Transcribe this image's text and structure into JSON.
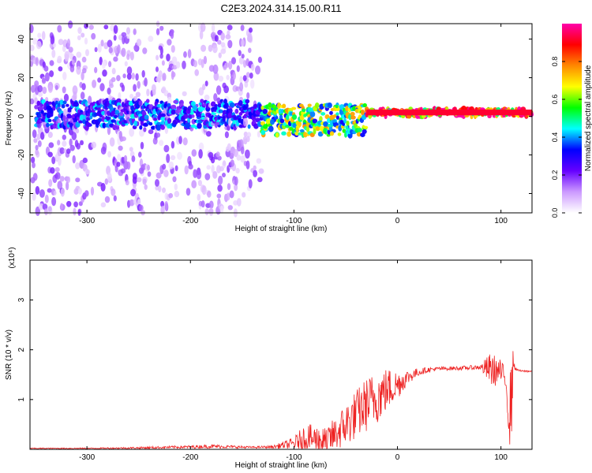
{
  "figure": {
    "title": "C2E3.2024.314.15.00.R11"
  },
  "chart_data": [
    {
      "type": "heatmap",
      "xlabel": "Height of straight line (km)",
      "ylabel": "Frequency (Hz)",
      "xlim": [
        -355,
        130
      ],
      "ylim": [
        -50,
        48
      ],
      "x_ticks": [
        -300,
        -200,
        -100,
        0,
        100
      ],
      "y_ticks": [
        -40,
        -20,
        0,
        20,
        40
      ],
      "grid": false,
      "colorbar": {
        "label": "Normalized spectral amplitude",
        "range": [
          0,
          1
        ],
        "ticks": [
          0.0,
          0.2,
          0.4,
          0.6,
          0.8
        ],
        "tick_labels": [
          "0.0",
          "0.2",
          "0.4",
          "0.6",
          "0.8"
        ],
        "colormap": [
          "#ffffff",
          "#cc99ff",
          "#6600ff",
          "#0000ff",
          "#00ffff",
          "#00ff00",
          "#ffff00",
          "#ff8800",
          "#ff0000",
          "#ff00aa"
        ]
      },
      "regions": [
        {
          "x_from": -355,
          "x_to": -130,
          "freq_spread": [
            -50,
            48
          ],
          "amplitude": 0.15,
          "pattern": "broadband vertical stripes"
        },
        {
          "x_from": -350,
          "x_to": -130,
          "freq_spread": [
            -6,
            8
          ],
          "amplitude": 0.35
        },
        {
          "x_from": -130,
          "x_to": -30,
          "freq_spread": [
            -10,
            6
          ],
          "amplitude": 0.6
        },
        {
          "x_from": -30,
          "x_to": 130,
          "freq_spread": [
            0,
            4
          ],
          "amplitude": 0.95,
          "center_freq": 2
        }
      ]
    },
    {
      "type": "line",
      "xlabel": "Height of straight line (km)",
      "ylabel": "SNR (10 * v/v)",
      "y_multiplier": "(x10⁴)",
      "xlim": [
        -355,
        130
      ],
      "ylim": [
        0,
        3.8
      ],
      "x_ticks": [
        -300,
        -200,
        -100,
        0,
        100
      ],
      "y_ticks": [
        1,
        2,
        3
      ],
      "color": "#ee2222",
      "series": [
        {
          "x": [
            -355,
            -300,
            -250,
            -200,
            -180,
            -160,
            -140,
            -120,
            -100,
            -90,
            -80,
            -70,
            -60,
            -50,
            -40,
            -30,
            -20,
            -10,
            0,
            10,
            20,
            30,
            40,
            60,
            80,
            90,
            100,
            105,
            108,
            110,
            112,
            115,
            120,
            130
          ],
          "y": [
            0.02,
            0.02,
            0.03,
            0.05,
            0.06,
            0.05,
            0.04,
            0.05,
            0.12,
            0.25,
            0.2,
            0.15,
            0.3,
            0.5,
            0.7,
            0.9,
            1.05,
            1.2,
            1.3,
            1.45,
            1.55,
            1.6,
            1.62,
            1.63,
            1.65,
            1.6,
            1.55,
            1.4,
            0.3,
            1.4,
            1.7,
            1.6,
            1.57,
            1.57
          ],
          "noise": [
            0.01,
            0.01,
            0.02,
            0.03,
            0.04,
            0.03,
            0.02,
            0.03,
            0.12,
            0.25,
            0.3,
            0.3,
            0.35,
            0.45,
            0.5,
            0.55,
            0.55,
            0.45,
            0.3,
            0.15,
            0.08,
            0.05,
            0.04,
            0.04,
            0.05,
            0.35,
            0.25,
            0.2,
            0.2,
            1.5,
            0.1,
            0.02,
            0.02,
            0.02
          ]
        }
      ]
    }
  ]
}
